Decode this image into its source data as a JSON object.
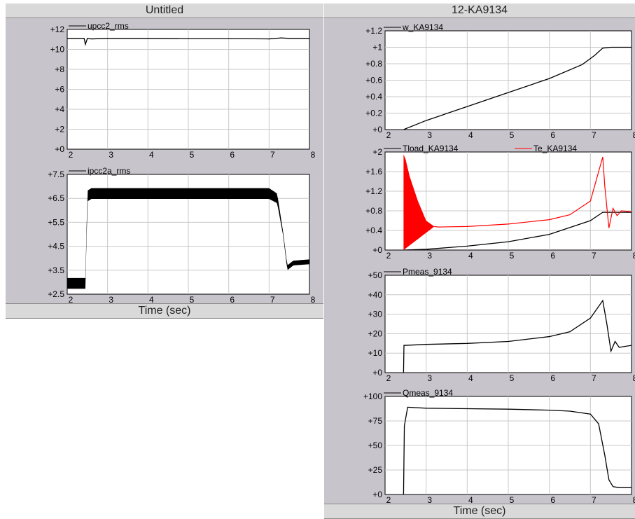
{
  "left_window": {
    "title": "Untitled",
    "time_label": "Time (sec)"
  },
  "right_window": {
    "title": "12-KA9134",
    "time_label": "Time (sec)"
  },
  "colors": {
    "trace_black": "#000000",
    "trace_red": "#ff0000",
    "plot_bg": "#ffffff",
    "grid": "#c8c8c8"
  },
  "chart_data": [
    {
      "id": "upcc2",
      "type": "line",
      "xlim": [
        2,
        8
      ],
      "ylim": [
        0,
        12
      ],
      "xticks": [
        "2",
        "3",
        "4",
        "5",
        "6",
        "7",
        "8"
      ],
      "yticks": [
        "+0",
        "+2",
        "+4",
        "+6",
        "+8",
        "+10",
        "+12"
      ],
      "series": [
        {
          "name": "upcc2_rms",
          "color": "#000000",
          "x": [
            2,
            2.42,
            2.45,
            2.5,
            2.6,
            3,
            4,
            5,
            6,
            7,
            7.3,
            7.5,
            8
          ],
          "y": [
            11.1,
            11.1,
            10.5,
            11.1,
            11.05,
            11.1,
            11.1,
            11.08,
            11.08,
            11.05,
            11.15,
            11.1,
            11.1
          ]
        }
      ]
    },
    {
      "id": "ipcc2a",
      "type": "line",
      "xlim": [
        2,
        8
      ],
      "ylim": [
        2.5,
        7.5
      ],
      "xticks": [
        "2",
        "3",
        "4",
        "5",
        "6",
        "7",
        "8"
      ],
      "yticks": [
        "+2.5",
        "+3.5",
        "+4.5",
        "+5.5",
        "+6.5",
        "+7.5"
      ],
      "series": [
        {
          "name": "ipcc2a_rms",
          "color": "#000000",
          "x": [
            2,
            2.45,
            2.5,
            2.6,
            3,
            4,
            5,
            6,
            7,
            7.2,
            7.35,
            7.45,
            7.6,
            8
          ],
          "y": [
            2.95,
            2.95,
            6.6,
            6.7,
            6.7,
            6.7,
            6.7,
            6.7,
            6.7,
            6.5,
            5.0,
            3.6,
            3.8,
            3.85
          ],
          "band": [
            0.45,
            0.45,
            0.45,
            0.45,
            0.45,
            0.45,
            0.45,
            0.45,
            0.45,
            0.4,
            0.15,
            0.2,
            0.2,
            0.2
          ]
        }
      ]
    },
    {
      "id": "w",
      "type": "line",
      "xlim": [
        2,
        8
      ],
      "ylim": [
        0,
        1.2
      ],
      "xticks": [
        "2",
        "3",
        "4",
        "5",
        "6",
        "7",
        "8"
      ],
      "yticks": [
        "+0",
        "+0.2",
        "+0.4",
        "+0.6",
        "+0.8",
        "+1",
        "+1.2"
      ],
      "series": [
        {
          "name": "w_KA9134",
          "color": "#000000",
          "x": [
            2.45,
            3,
            4,
            5,
            6,
            6.8,
            7.1,
            7.3,
            7.5,
            8
          ],
          "y": [
            0,
            0.11,
            0.28,
            0.45,
            0.62,
            0.79,
            0.9,
            0.99,
            1.0,
            1.0
          ]
        }
      ]
    },
    {
      "id": "torque",
      "type": "line",
      "xlim": [
        2,
        8
      ],
      "ylim": [
        0,
        2
      ],
      "xticks": [
        "2",
        "3",
        "4",
        "5",
        "6",
        "7",
        "8"
      ],
      "yticks": [
        "+0",
        "+0.4",
        "+0.8",
        "+1.2",
        "+1.6",
        "+2"
      ],
      "series": [
        {
          "name": "Tload_KA9134",
          "color": "#000000",
          "x": [
            2.45,
            3,
            4,
            5,
            6,
            7,
            7.3,
            7.5,
            8
          ],
          "y": [
            0,
            0.015,
            0.08,
            0.17,
            0.32,
            0.6,
            0.77,
            0.77,
            0.77
          ]
        },
        {
          "name": "Te_KA9134",
          "color": "#ff0000",
          "x": [
            2.45,
            2.5,
            2.6,
            2.8,
            3.0,
            3.2,
            3.3,
            4,
            5,
            6,
            6.5,
            7.0,
            7.2,
            7.3,
            7.35,
            7.45,
            7.55,
            7.65,
            7.75,
            8
          ],
          "y": [
            1.95,
            1.85,
            1.5,
            1.0,
            0.6,
            0.48,
            0.47,
            0.48,
            0.53,
            0.62,
            0.72,
            1.0,
            1.6,
            1.9,
            1.3,
            0.45,
            0.85,
            0.7,
            0.8,
            0.78
          ],
          "osc_until": 3.2
        }
      ]
    },
    {
      "id": "pmeas",
      "type": "line",
      "xlim": [
        2,
        8
      ],
      "ylim": [
        0,
        50
      ],
      "xticks": [
        "2",
        "3",
        "4",
        "5",
        "6",
        "7",
        "8"
      ],
      "yticks": [
        "+0",
        "+10",
        "+20",
        "+30",
        "+40",
        "+50"
      ],
      "series": [
        {
          "name": "Pmeas_9134",
          "color": "#000000",
          "x": [
            2.45,
            2.46,
            2.5,
            3,
            4,
            5,
            6,
            6.5,
            7,
            7.2,
            7.3,
            7.4,
            7.5,
            7.6,
            7.7,
            8
          ],
          "y": [
            0,
            14,
            14,
            14.5,
            15,
            16,
            18.5,
            21,
            28,
            34,
            37,
            25,
            11,
            16,
            13,
            14
          ]
        }
      ]
    },
    {
      "id": "qmeas",
      "type": "line",
      "xlim": [
        2,
        8
      ],
      "ylim": [
        0,
        100
      ],
      "xticks": [
        "2",
        "3",
        "4",
        "5",
        "6",
        "7",
        "8"
      ],
      "yticks": [
        "+0",
        "+25",
        "+50",
        "+75",
        "+100"
      ],
      "series": [
        {
          "name": "Qmeas_9134",
          "color": "#000000",
          "x": [
            2.45,
            2.47,
            2.55,
            3,
            4,
            5,
            6,
            6.5,
            7,
            7.2,
            7.35,
            7.45,
            7.55,
            7.7,
            8
          ],
          "y": [
            0,
            70,
            89,
            88,
            87.5,
            87,
            86,
            85,
            82,
            72,
            40,
            15,
            8,
            7,
            7
          ]
        }
      ]
    }
  ]
}
